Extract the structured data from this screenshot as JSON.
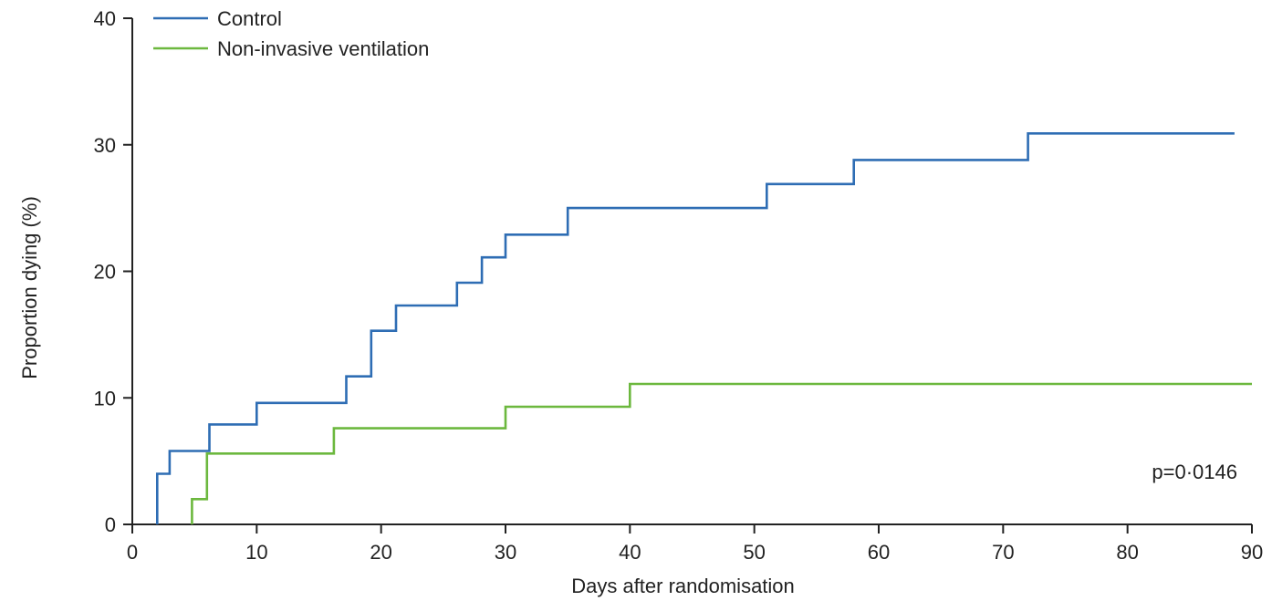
{
  "chart_data": {
    "type": "line",
    "step": true,
    "xlabel": "Days after randomisation",
    "ylabel": "Proportion dying (%)",
    "xlim": [
      0,
      90
    ],
    "ylim": [
      0,
      40
    ],
    "xticks": [
      "0",
      "10",
      "20",
      "30",
      "40",
      "50",
      "60",
      "70",
      "80",
      "90"
    ],
    "yticks": [
      "0",
      "10",
      "20",
      "30",
      "40"
    ],
    "grid": false,
    "legend_position": "top-left",
    "annotation": "p=0·0146",
    "series": [
      {
        "name": "Control",
        "color": "#2e6db4",
        "points": [
          [
            2,
            0
          ],
          [
            2,
            4
          ],
          [
            3,
            4
          ],
          [
            3,
            5.8
          ],
          [
            6.2,
            5.8
          ],
          [
            6.2,
            7.9
          ],
          [
            10,
            7.9
          ],
          [
            10,
            9.6
          ],
          [
            17.2,
            9.6
          ],
          [
            17.2,
            11.7
          ],
          [
            19.2,
            11.7
          ],
          [
            19.2,
            15.3
          ],
          [
            21.2,
            15.3
          ],
          [
            21.2,
            17.3
          ],
          [
            26.1,
            17.3
          ],
          [
            26.1,
            19.1
          ],
          [
            28.1,
            19.1
          ],
          [
            28.1,
            21.1
          ],
          [
            30,
            21.1
          ],
          [
            30,
            22.9
          ],
          [
            35,
            22.9
          ],
          [
            35,
            25
          ],
          [
            51,
            25
          ],
          [
            51,
            26.9
          ],
          [
            58,
            26.9
          ],
          [
            58,
            28.8
          ],
          [
            72,
            28.8
          ],
          [
            72,
            30.9
          ],
          [
            88.6,
            30.9
          ]
        ]
      },
      {
        "name": "Non-invasive ventilation",
        "color": "#6cb83e",
        "points": [
          [
            4.8,
            0
          ],
          [
            4.8,
            2
          ],
          [
            6,
            2
          ],
          [
            6,
            5.6
          ],
          [
            16.2,
            5.6
          ],
          [
            16.2,
            7.6
          ],
          [
            30,
            7.6
          ],
          [
            30,
            9.3
          ],
          [
            40,
            9.3
          ],
          [
            40,
            11.1
          ],
          [
            90,
            11.1
          ]
        ]
      }
    ]
  }
}
